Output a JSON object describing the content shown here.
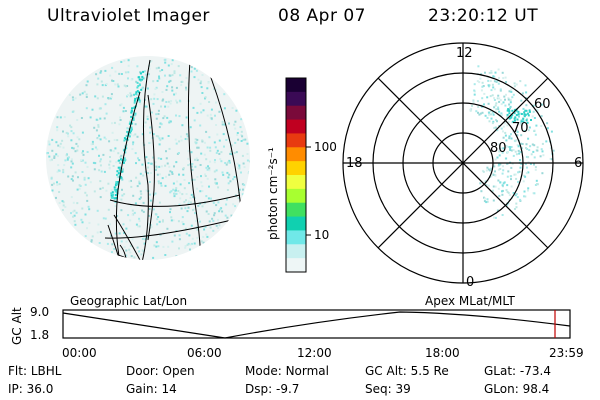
{
  "header": {
    "instrument": "Ultraviolet Imager",
    "date": "08 Apr 07",
    "time": "23:20:12 UT"
  },
  "colorbar": {
    "unit_label": "photon cm⁻²s⁻¹",
    "ticks": [
      "100",
      "10"
    ],
    "colors": [
      "#1a0033",
      "#3a0a55",
      "#7a0a3a",
      "#c00020",
      "#e83a10",
      "#ff8c00",
      "#ffd200",
      "#f0ff40",
      "#a8ff30",
      "#40e060",
      "#10d0b0",
      "#70e8e8",
      "#c8f0f0",
      "#eef6f6"
    ]
  },
  "polar_plot": {
    "mlt_labels": {
      "top": "12",
      "left": "18",
      "right": "6",
      "bottom": "0"
    },
    "lat_labels": [
      "60",
      "70",
      "80"
    ]
  },
  "map_labels": {
    "left": "Geographic Lat/Lon",
    "right": "Apex MLat/MLT"
  },
  "altitude_strip": {
    "axis_label": "GC Alt",
    "y_ticks": [
      "9.0",
      "1.8"
    ],
    "x_ticks": [
      "00:00",
      "06:00",
      "12:00",
      "18:00",
      "23:59"
    ]
  },
  "status": {
    "row1": [
      {
        "label": "Flt:",
        "value": "LBHL"
      },
      {
        "label": "Door:",
        "value": "Open"
      },
      {
        "label": "Mode:",
        "value": "Normal"
      },
      {
        "label": "GC Alt:",
        "value": "5.5 Re"
      },
      {
        "label": "GLat:",
        "value": "-73.4"
      }
    ],
    "row2": [
      {
        "label": "IP:",
        "value": "36.0"
      },
      {
        "label": "Gain:",
        "value": "14"
      },
      {
        "label": "Dsp:",
        "value": "-9.7"
      },
      {
        "label": "Seq:",
        "value": "39"
      },
      {
        "label": "GLon:",
        "value": "98.4"
      }
    ]
  }
}
